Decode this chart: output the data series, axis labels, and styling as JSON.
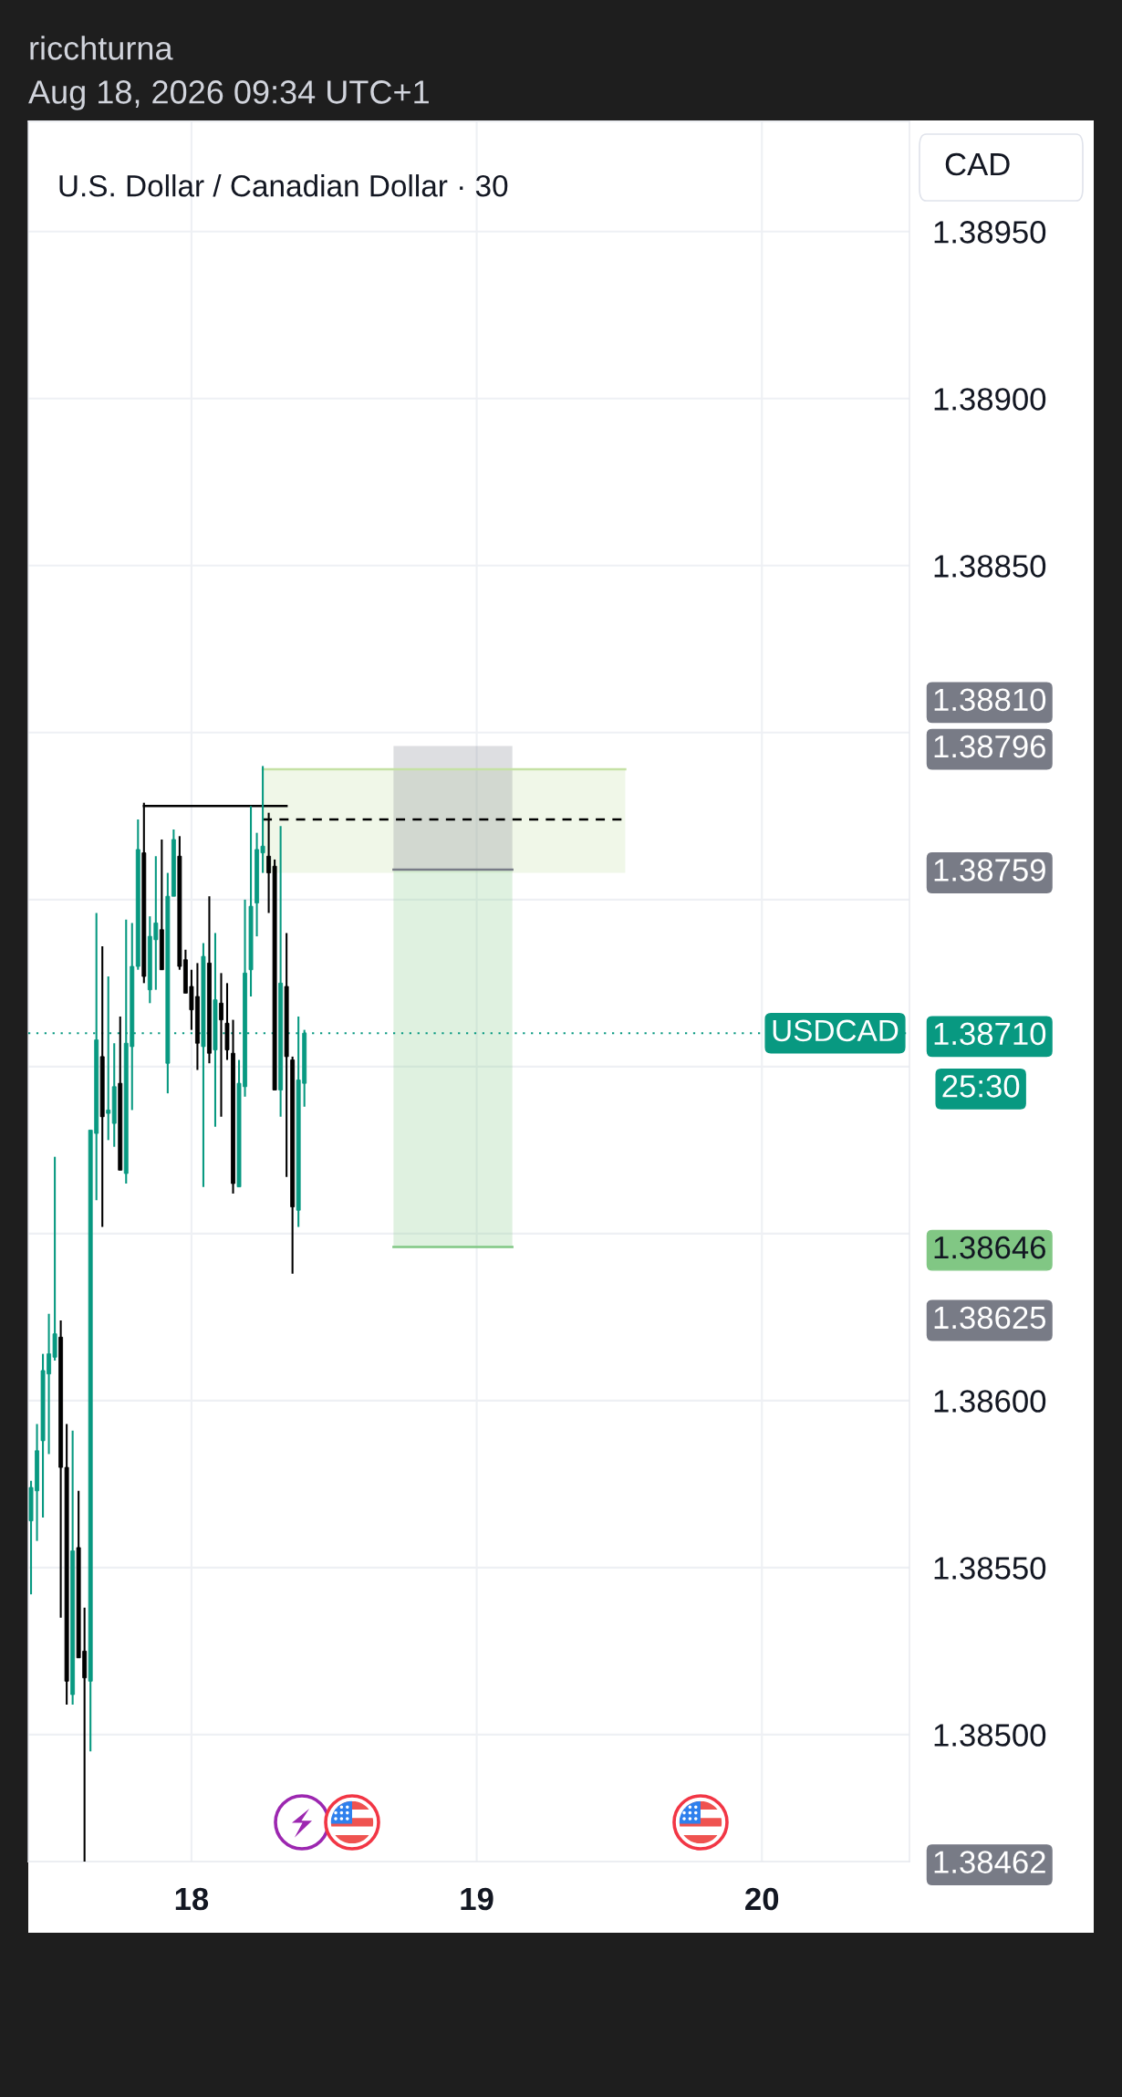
{
  "chart_data": {
    "type": "candlestick",
    "title": "U.S. Dollar / Canadian Dollar · 30",
    "y2label": "CAD",
    "annotations": [
      "ricchturna",
      "Aug 18, 2026 09:34 UTC+1",
      "25:30"
    ],
    "series": [
      {
        "x": [
          "2026-08-17T10:30",
          "2026-08-17T11:00",
          "2026-08-17T11:30",
          "2026-08-17T12:00",
          "2026-08-17T12:30",
          "2026-08-17T13:00",
          "2026-08-17T13:30",
          "2026-08-17T14:00",
          "2026-08-17T14:30",
          "2026-08-17T15:00",
          "2026-08-17T15:30",
          "2026-08-17T16:00",
          "2026-08-17T16:30",
          "2026-08-17T17:00",
          "2026-08-17T17:30",
          "2026-08-17T18:00",
          "2026-08-17T18:30",
          "2026-08-17T19:00",
          "2026-08-17T19:30",
          "2026-08-17T20:00",
          "2026-08-17T20:30",
          "2026-08-17T21:00",
          "2026-08-17T21:30",
          "2026-08-17T22:00",
          "2026-08-17T22:30",
          "2026-08-17T23:00",
          "2026-08-17T23:30",
          "2026-08-18T00:00",
          "2026-08-18T00:30",
          "2026-08-18T01:00",
          "2026-08-18T01:30",
          "2026-08-18T02:00",
          "2026-08-18T02:30",
          "2026-08-18T03:00",
          "2026-08-18T03:30",
          "2026-08-18T04:00",
          "2026-08-18T04:30",
          "2026-08-18T05:00",
          "2026-08-18T05:30",
          "2026-08-18T06:00",
          "2026-08-18T06:30",
          "2026-08-18T07:00",
          "2026-08-18T07:30",
          "2026-08-18T08:00",
          "2026-08-18T08:30",
          "2026-08-18T09:00",
          "2026-08-18T09:30"
        ],
        "ohlc": [
          [
            1.38564,
            1.38576,
            1.38542,
            1.38574
          ],
          [
            1.38573,
            1.38593,
            1.38558,
            1.38585
          ],
          [
            1.38588,
            1.38614,
            1.38565,
            1.38609
          ],
          [
            1.38608,
            1.38626,
            1.38584,
            1.38614
          ],
          [
            1.38613,
            1.38673,
            1.38612,
            1.3862
          ],
          [
            1.38619,
            1.38624,
            1.38535,
            1.3858
          ],
          [
            1.3858,
            1.38593,
            1.38509,
            1.38516
          ],
          [
            1.38512,
            1.38591,
            1.38509,
            1.38555
          ],
          [
            1.38556,
            1.38573,
            1.38523,
            1.38523
          ],
          [
            1.38525,
            1.38538,
            1.38462,
            1.38517
          ],
          [
            1.38516,
            1.38681,
            1.38495,
            1.38681
          ],
          [
            1.3868,
            1.38746,
            1.3866,
            1.38708
          ],
          [
            1.38703,
            1.38736,
            1.38652,
            1.38685
          ],
          [
            1.38686,
            1.38727,
            1.38678,
            1.38687
          ],
          [
            1.38683,
            1.38707,
            1.38676,
            1.38694
          ],
          [
            1.38695,
            1.38715,
            1.38669,
            1.38669
          ],
          [
            1.38668,
            1.38744,
            1.38665,
            1.38707
          ],
          [
            1.38706,
            1.38743,
            1.38687,
            1.3873
          ],
          [
            1.3873,
            1.38774,
            1.38729,
            1.38765
          ],
          [
            1.38764,
            1.38779,
            1.38725,
            1.38727
          ],
          [
            1.38723,
            1.38745,
            1.38719,
            1.38739
          ],
          [
            1.38738,
            1.38763,
            1.38723,
            1.38743
          ],
          [
            1.38741,
            1.38768,
            1.38729,
            1.38729
          ],
          [
            1.38701,
            1.38758,
            1.38692,
            1.38751
          ],
          [
            1.38751,
            1.38771,
            1.38751,
            1.38768
          ],
          [
            1.38763,
            1.38769,
            1.38729,
            1.3873
          ],
          [
            1.38732,
            1.38735,
            1.38722,
            1.38722
          ],
          [
            1.38724,
            1.38729,
            1.38711,
            1.38717
          ],
          [
            1.38721,
            1.38731,
            1.38699,
            1.38707
          ],
          [
            1.38706,
            1.38737,
            1.38664,
            1.38733
          ],
          [
            1.38731,
            1.38751,
            1.38701,
            1.38704
          ],
          [
            1.38705,
            1.3874,
            1.38682,
            1.3872
          ],
          [
            1.38719,
            1.38728,
            1.38685,
            1.38714
          ],
          [
            1.38713,
            1.38725,
            1.38702,
            1.38705
          ],
          [
            1.38704,
            1.38714,
            1.38662,
            1.38665
          ],
          [
            1.38664,
            1.38702,
            1.38664,
            1.38695
          ],
          [
            1.38694,
            1.3875,
            1.38691,
            1.38728
          ],
          [
            1.38729,
            1.38778,
            1.38721,
            1.38748
          ],
          [
            1.38749,
            1.3877,
            1.38739,
            1.38765
          ],
          [
            1.38764,
            1.3879,
            1.38758,
            1.38766
          ],
          [
            1.38763,
            1.38776,
            1.38746,
            1.38758
          ],
          [
            1.3876,
            1.38762,
            1.38693,
            1.38693
          ],
          [
            1.38693,
            1.38772,
            1.38685,
            1.38725
          ],
          [
            1.38724,
            1.3874,
            1.38667,
            1.38703
          ],
          [
            1.38702,
            1.38703,
            1.38638,
            1.38658
          ],
          [
            1.38657,
            1.38715,
            1.38652,
            1.38696
          ],
          [
            1.38695,
            1.38711,
            1.38688,
            1.3871
          ]
        ],
        "colors": [
          "#089981",
          "#089981",
          "#089981",
          "#089981",
          "#089981",
          "#000000",
          "#000000",
          "#089981",
          "#000000",
          "#000000",
          "#089981",
          "#089981",
          "#000000",
          "#089981",
          "#089981",
          "#000000",
          "#089981",
          "#089981",
          "#089981",
          "#000000",
          "#089981",
          "#089981",
          "#000000",
          "#089981",
          "#089981",
          "#000000",
          "#000000",
          "#000000",
          "#000000",
          "#089981",
          "#000000",
          "#089981",
          "#000000",
          "#000000",
          "#000000",
          "#089981",
          "#089981",
          "#089981",
          "#089981",
          "#089981",
          "#000000",
          "#000000",
          "#089981",
          "#000000",
          "#000000",
          "#089981",
          "#089981"
        ]
      },
      {
        "type": "line",
        "x": [
          "2026-08-18T06:00",
          "2026-08-19T12:30"
        ],
        "values": [
          1.38789,
          1.38789
        ],
        "lower": [
          1.38758,
          1.38758
        ],
        "upper": [
          1.38789,
          1.38789
        ],
        "color": "#c5e1a5"
      },
      {
        "type": "line",
        "x": [
          "2026-08-18T17:00",
          "2026-08-19T03:00"
        ],
        "values": [
          1.38759,
          1.38759
        ],
        "lower": [
          1.38759,
          1.38759
        ],
        "upper": [
          1.38796,
          1.38796
        ],
        "color": "#787b86"
      },
      {
        "type": "line",
        "x": [
          "2026-08-18T17:00",
          "2026-08-19T03:00"
        ],
        "values": [
          1.38646,
          1.38646
        ],
        "lower": [
          1.38646,
          1.38646
        ],
        "upper": [
          1.38759,
          1.38759
        ],
        "color": "#81c784"
      },
      {
        "type": "line",
        "x": [
          "2026-08-18T06:00",
          "2026-08-19T12:30"
        ],
        "values": [
          1.38774,
          1.38774
        ],
        "color": "#000000",
        "line_style": "dashed"
      },
      {
        "type": "line",
        "x": [
          "2026-08-17T20:00",
          "2026-08-18T08:00"
        ],
        "values": [
          1.38778,
          1.38778
        ],
        "color": "#000000"
      }
    ],
    "ref_lines": [
      {
        "axis": "y",
        "value": 1.3871,
        "label": "USDCAD",
        "color": "#089981",
        "line_style": "dotted"
      }
    ],
    "xlim": [
      "2026-08-17T10:16",
      "2026-08-20T12:25"
    ],
    "xticks": [
      {
        "value": "2026-08-18",
        "label": "18"
      },
      {
        "value": "2026-08-19",
        "label": "19"
      },
      {
        "value": "2026-08-20",
        "label": "20"
      }
    ],
    "ylim": [
      1.38462,
      1.38983
    ],
    "yticks": [
      {
        "value": 1.385,
        "label": "1.38500"
      },
      {
        "value": 1.3855,
        "label": "1.38550"
      },
      {
        "value": 1.386,
        "label": "1.38600"
      },
      {
        "value": 1.3865,
        "label": null
      },
      {
        "value": 1.387,
        "label": null
      },
      {
        "value": 1.3875,
        "label": null
      },
      {
        "value": 1.388,
        "label": null
      },
      {
        "value": 1.3885,
        "label": "1.38850"
      },
      {
        "value": 1.389,
        "label": "1.38900"
      },
      {
        "value": 1.3895,
        "label": "1.38950"
      }
    ],
    "y2lim": [
      1.38462,
      1.38983
    ],
    "y2ticks": [
      {
        "value": 1.38462,
        "label": "1.38462"
      },
      {
        "value": 1.38625,
        "label": "1.38625"
      },
      {
        "value": 1.38646,
        "label": "1.38646"
      },
      {
        "value": 1.3871,
        "label": "1.38710"
      },
      {
        "value": 1.38759,
        "label": "1.38759"
      },
      {
        "value": 1.38796,
        "label": "1.38796"
      },
      {
        "value": 1.3881,
        "label": "1.38810"
      }
    ],
    "grid": true
  }
}
